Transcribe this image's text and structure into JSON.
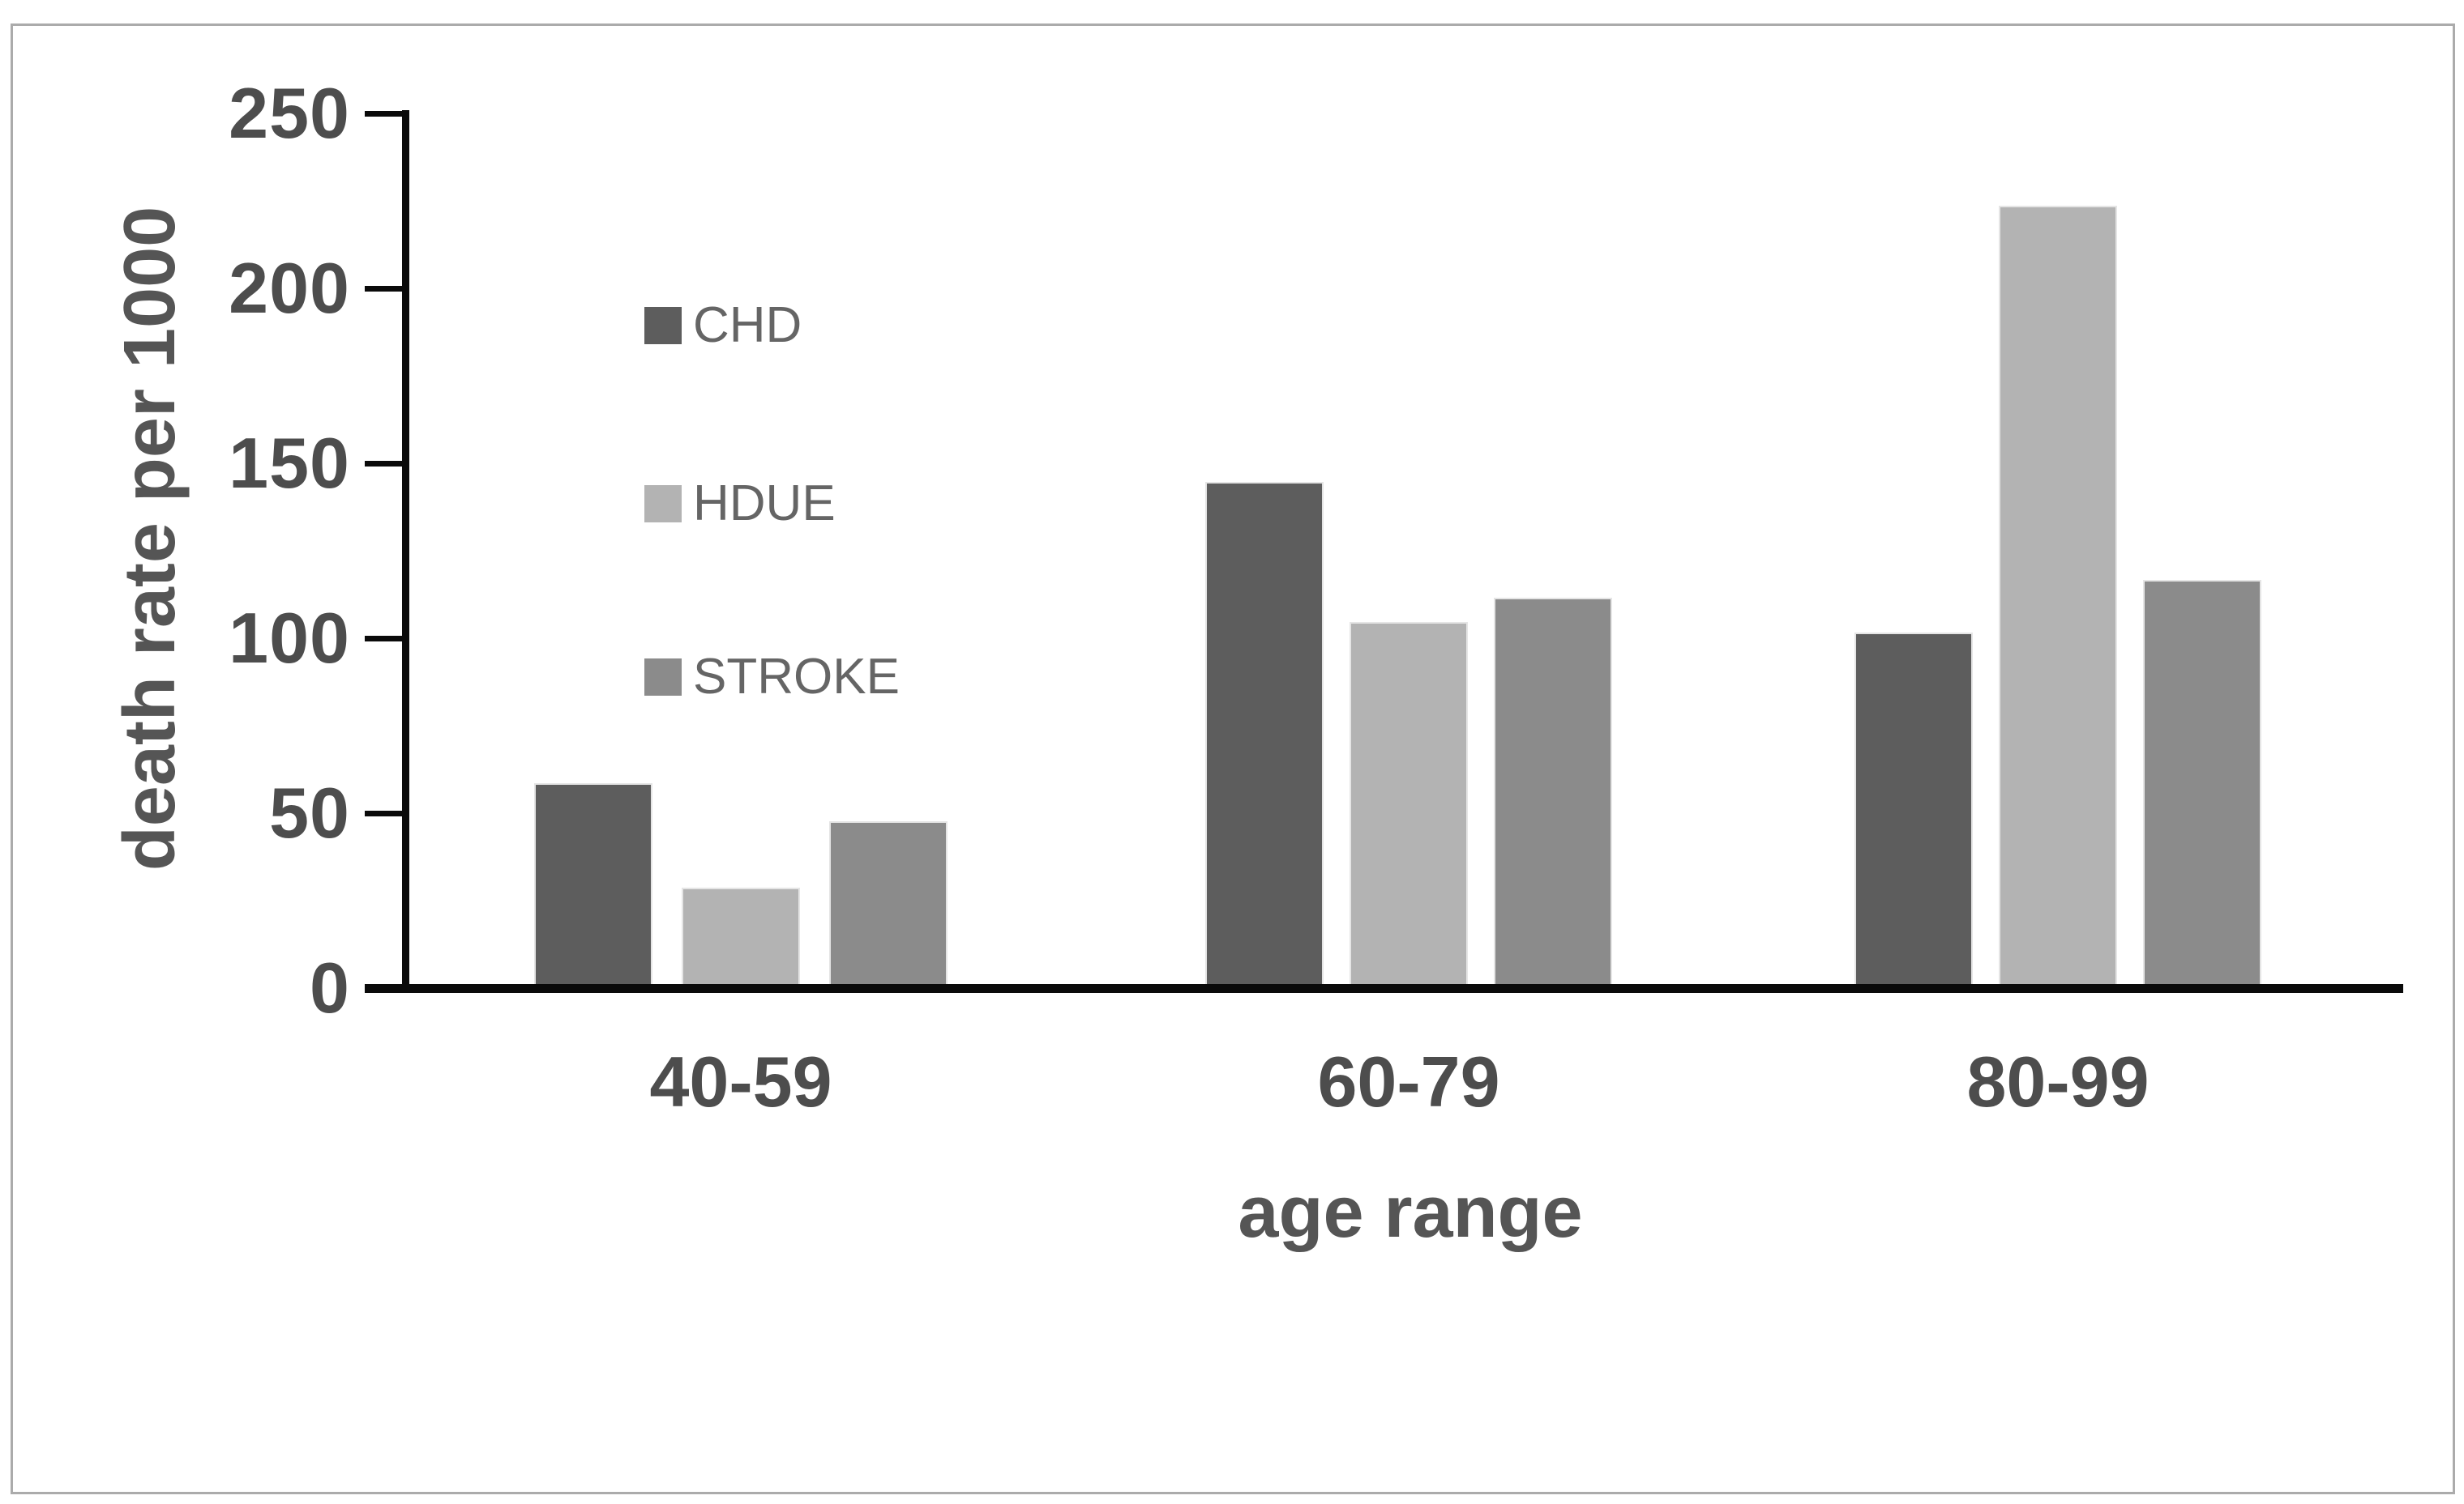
{
  "figure": {
    "background_color": "#ffffff",
    "frame_border_color": "#ababab",
    "axis_line_color": "#0a0a0a",
    "tick_label_color": "#4d4d4d",
    "axis_title_color": "#555555",
    "legend_text_color": "#656565"
  },
  "chart_data": {
    "type": "bar",
    "title": "",
    "xlabel": "age range",
    "ylabel": "death rate per 1000",
    "categories": [
      "40-59",
      "60-79",
      "80-99"
    ],
    "series": [
      {
        "name": "CHD",
        "color": "#5d5d5d",
        "values": [
          57,
          143,
          100
        ]
      },
      {
        "name": "HDUE",
        "color": "#b3b3b3",
        "values": [
          27,
          103,
          222
        ]
      },
      {
        "name": "STROKE",
        "color": "#8b8b8b",
        "values": [
          46,
          110,
          115
        ]
      }
    ],
    "ylim": [
      0,
      250
    ],
    "yticks": [
      0,
      50,
      100,
      150,
      200,
      250
    ],
    "grid": false,
    "legend_position": "inside-upper-left",
    "legend_orientation": "vertical"
  }
}
